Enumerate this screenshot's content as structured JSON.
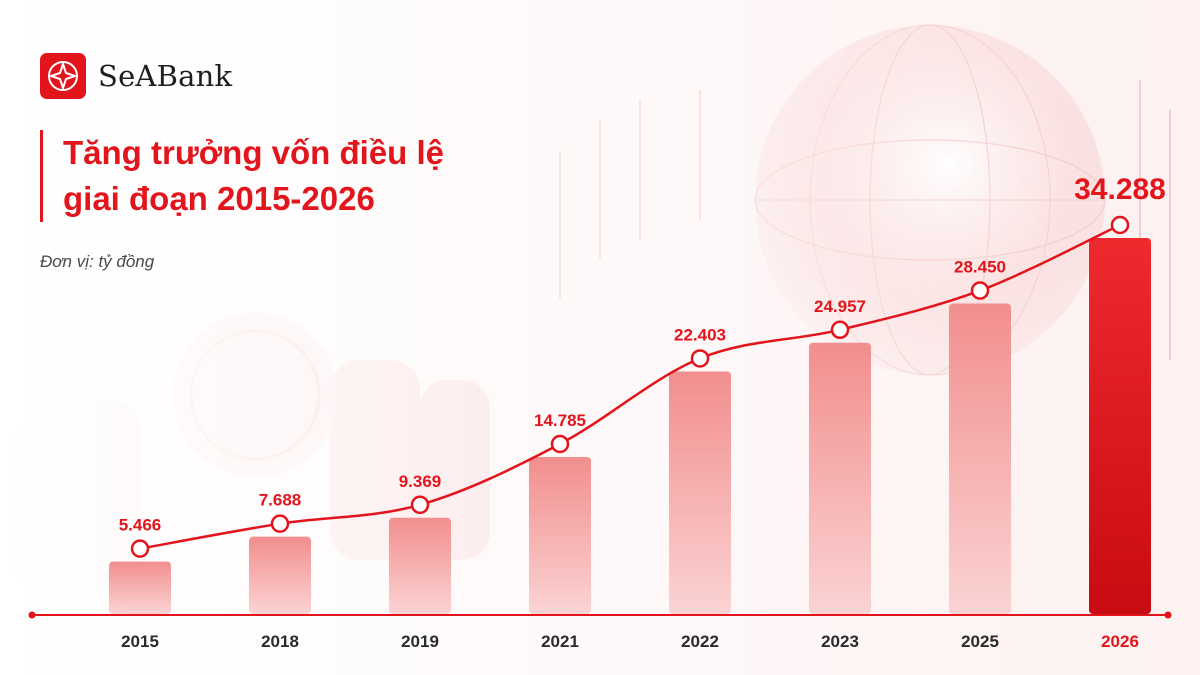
{
  "brand": {
    "name": "SeABank",
    "logo_icon": "seabank-star-logo-icon",
    "color": "#e2151d"
  },
  "title": {
    "line1": "Tăng trưởng vốn điều lệ",
    "line2": "giai đoạn 2015-2026"
  },
  "unit_note": "Đơn vị: tỷ đồng",
  "colors": {
    "accent": "#e2151d",
    "bar_light": "#f6a4a4",
    "bar_highlight": "#d90f16"
  },
  "chart_data": {
    "type": "bar",
    "categories": [
      "2015",
      "2018",
      "2019",
      "2021",
      "2022",
      "2023",
      "2025",
      "2026"
    ],
    "values": [
      5466,
      7688,
      9369,
      14785,
      22403,
      24957,
      28450,
      34288
    ],
    "labels": [
      "5.466",
      "7.688",
      "9.369",
      "14.785",
      "22.403",
      "24.957",
      "28.450",
      "34.288"
    ],
    "highlight_index": 7,
    "overlay": "line-with-markers",
    "title": "Tăng trưởng vốn điều lệ giai đoạn 2015-2026",
    "xlabel": "",
    "ylabel": "",
    "ylim": [
      0,
      34288
    ],
    "grid": false,
    "legend": "none"
  }
}
